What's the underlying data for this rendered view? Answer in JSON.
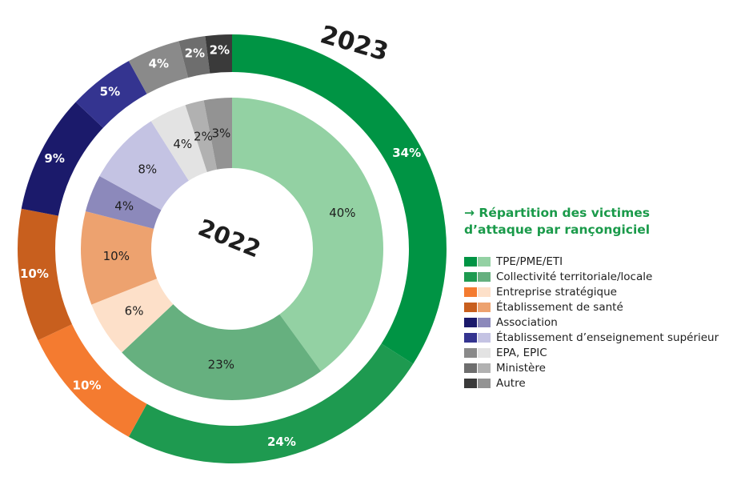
{
  "chart_data": {
    "type": "pie",
    "title": "→ Répartition des victimes d’attaque par rançongiciel",
    "title_lines": [
      "→ Répartition des victimes",
      "d’attaque par rançongiciel"
    ],
    "legend_position": "right",
    "categories": [
      "TPE/PME/ETI",
      "Collectivité territoriale/locale",
      "Entreprise stratégique",
      "Établissement de santé",
      "Association",
      "Établissement d’enseignement supérieur",
      "EPA, EPIC",
      "Ministère",
      "Autre"
    ],
    "series": [
      {
        "name": "2023",
        "ring": "outer",
        "values": [
          34,
          24,
          10,
          10,
          9,
          5,
          4,
          2,
          2
        ],
        "labels": [
          "34%",
          "24%",
          "10%",
          "10%",
          "9%",
          "5%",
          "4%",
          "2%",
          "2%"
        ],
        "colors": [
          "#009444",
          "#1e9a50",
          "#f47b30",
          "#c85f1e",
          "#1b1a6b",
          "#343490",
          "#8a8a8a",
          "#6e6e6e",
          "#3a3a3a"
        ],
        "label_colors": [
          "#ffffff",
          "#ffffff",
          "#ffffff",
          "#ffffff",
          "#ffffff",
          "#ffffff",
          "#ffffff",
          "#ffffff",
          "#ffffff"
        ]
      },
      {
        "name": "2022",
        "ring": "inner",
        "values": [
          40,
          23,
          6,
          10,
          4,
          8,
          4,
          2,
          3
        ],
        "labels": [
          "40%",
          "23%",
          "6%",
          "10%",
          "4%",
          "8%",
          "4%",
          "2%",
          "3%"
        ],
        "colors": [
          "#93d1a3",
          "#66b07f",
          "#fde0c9",
          "#eda26f",
          "#8c89bb",
          "#c4c3e3",
          "#e3e3e3",
          "#b1b1b1",
          "#939393"
        ],
        "label_colors": [
          "#1e1e1e",
          "#1e1e1e",
          "#1e1e1e",
          "#1e1e1e",
          "#1e1e1e",
          "#1e1e1e",
          "#1e1e1e",
          "#1e1e1e",
          "#1e1e1e"
        ]
      }
    ]
  }
}
